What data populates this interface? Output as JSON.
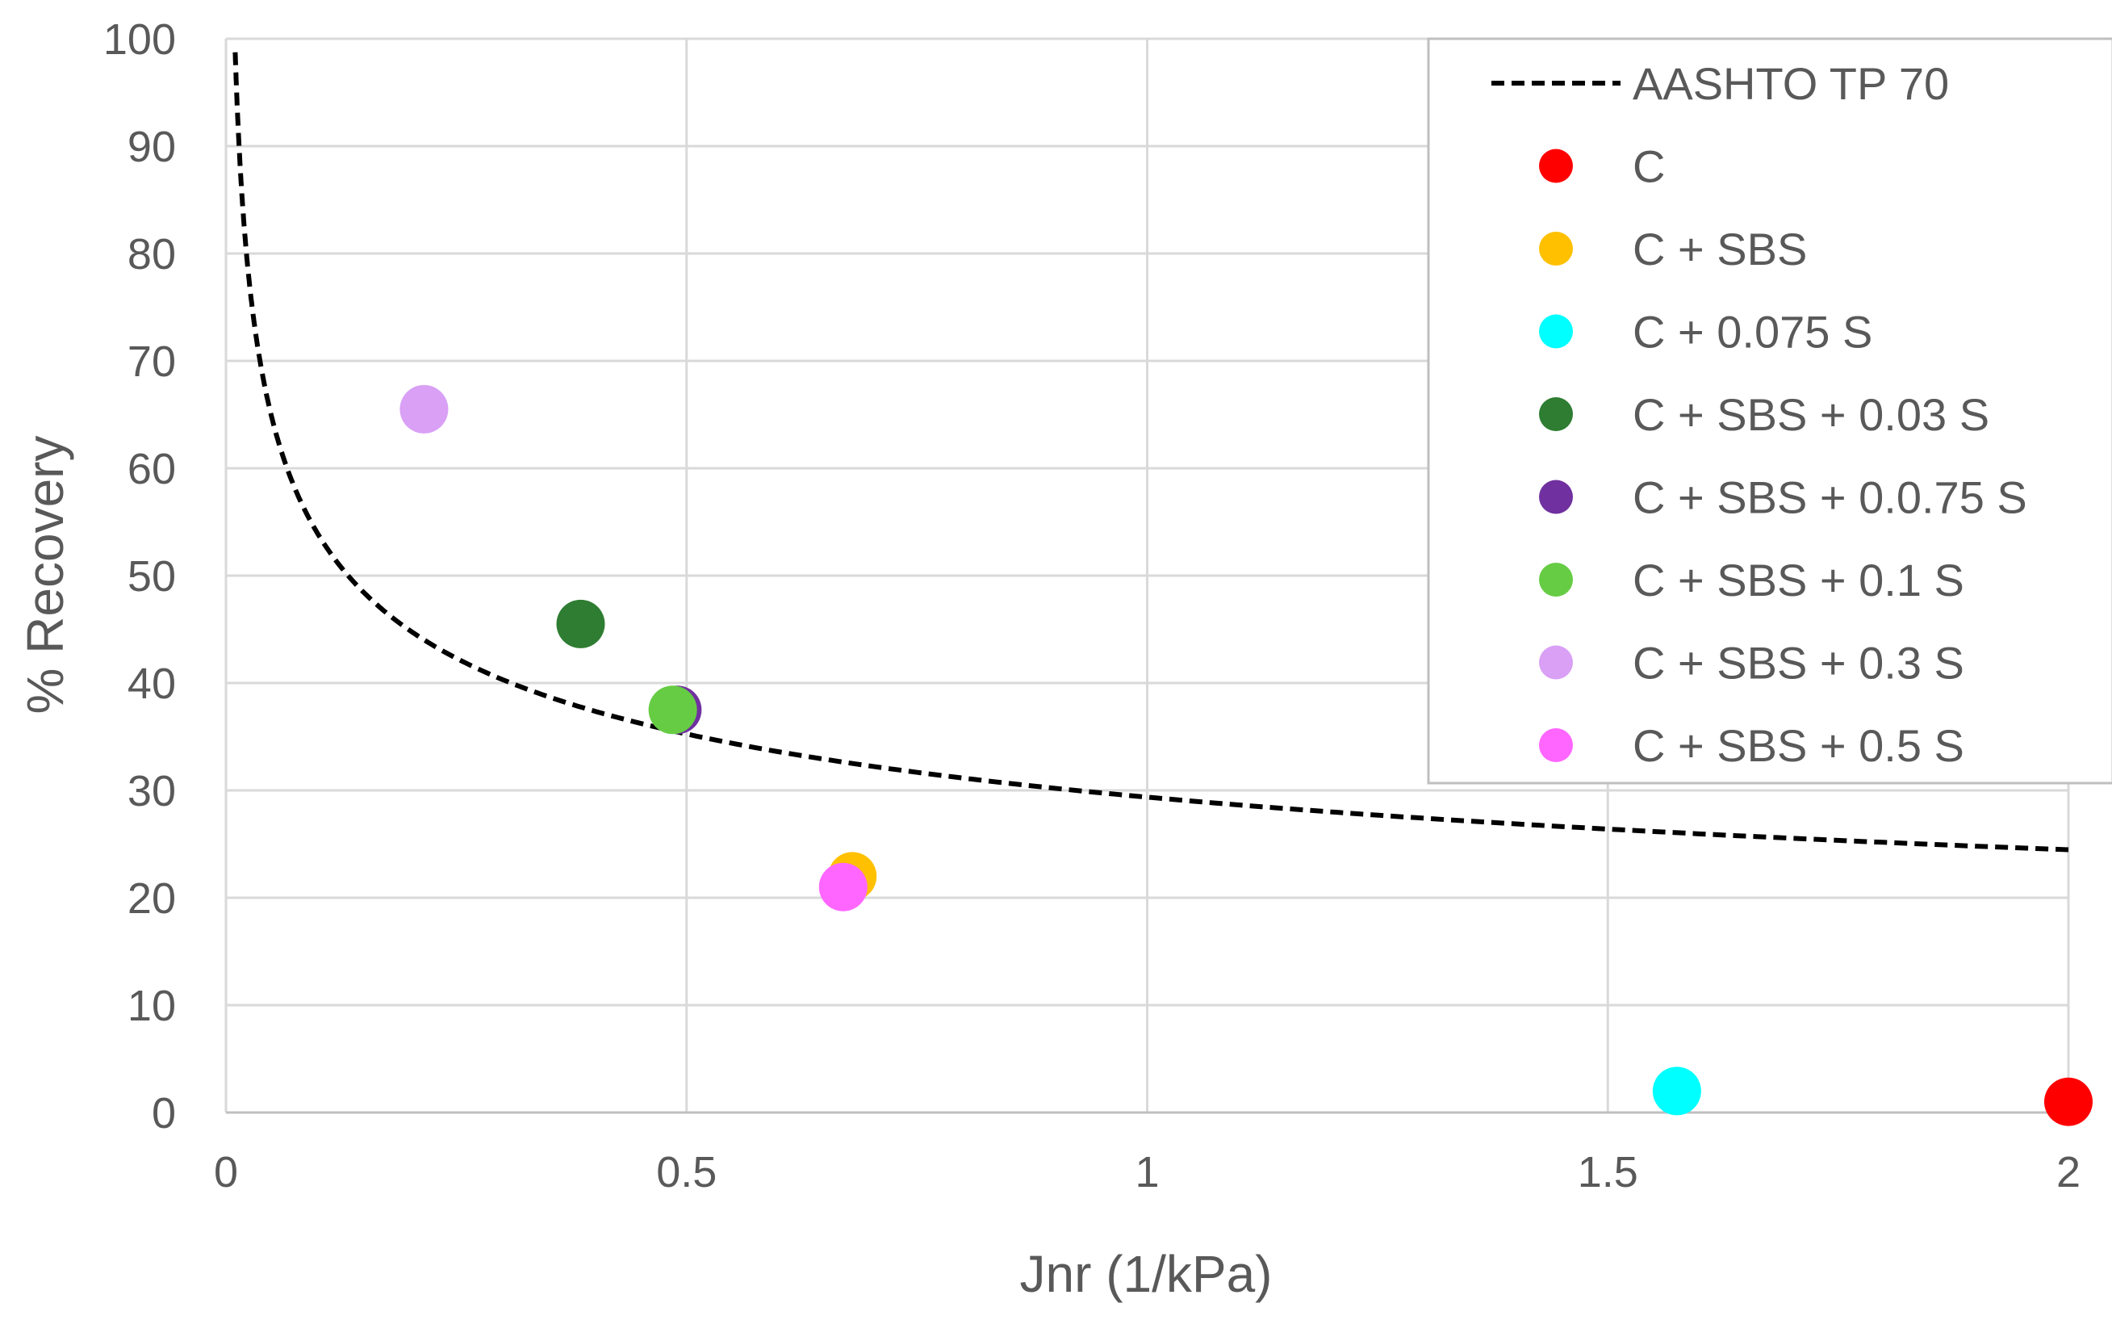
{
  "chart_data": {
    "type": "scatter",
    "title": "",
    "xlabel": "Jnr (1/kPa)",
    "ylabel": "% Recovery",
    "xlim": [
      0,
      2
    ],
    "ylim": [
      0,
      100
    ],
    "x_ticks": [
      0,
      0.5,
      1,
      1.5,
      2
    ],
    "x_tick_labels": [
      "0",
      "0.5",
      "1",
      "1.5",
      "2"
    ],
    "y_ticks": [
      0,
      10,
      20,
      30,
      40,
      50,
      60,
      70,
      80,
      90,
      100
    ],
    "y_tick_labels": [
      "0",
      "10",
      "20",
      "30",
      "40",
      "50",
      "60",
      "70",
      "80",
      "90",
      "100"
    ],
    "grid": true,
    "legend_position": "top-right",
    "curve": {
      "name": "AASHTO TP 70",
      "style": "dashed",
      "color": "#000000",
      "equation": "y = 29.371 * x^(-0.2633)",
      "x_range": [
        0.01,
        2
      ]
    },
    "series": [
      {
        "name": "C",
        "color": "#FF0000",
        "x": 2.0,
        "y": 1
      },
      {
        "name": "C + SBS",
        "color": "#FFC000",
        "x": 0.68,
        "y": 22
      },
      {
        "name": "C + 0.075 S",
        "color": "#00FFFF",
        "x": 1.575,
        "y": 2
      },
      {
        "name": "C + SBS + 0.03 S",
        "color": "#2E7D32",
        "x": 0.385,
        "y": 45.5
      },
      {
        "name": "C + SBS + 0.0.75 S",
        "color": "#7030A0",
        "x": 0.49,
        "y": 37.5
      },
      {
        "name": "C + SBS + 0.1 S",
        "color": "#66CC44",
        "x": 0.485,
        "y": 37.5
      },
      {
        "name": "C + SBS + 0.3 S",
        "color": "#D9A0F5",
        "x": 0.215,
        "y": 65.5
      },
      {
        "name": "C + SBS + 0.5 S",
        "color": "#FF66FF",
        "x": 0.67,
        "y": 21
      }
    ]
  }
}
